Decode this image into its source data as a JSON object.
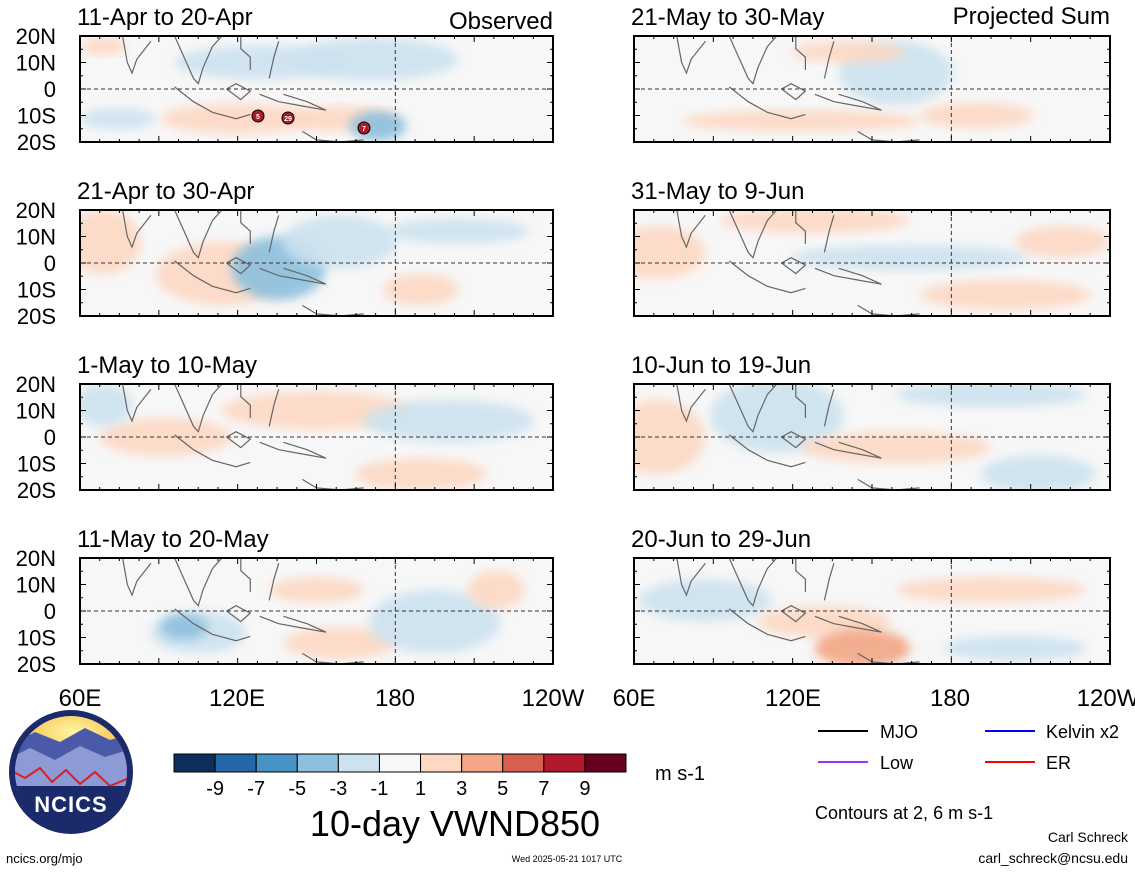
{
  "figure": {
    "title": "10-day VWND850",
    "units": "m s-1",
    "contour_note": "Contours at 2, 6 m s-1",
    "author": "Carl Schreck",
    "email": "carl_schreck@ncsu.edu",
    "source_url": "ncics.org/mjo",
    "timestamp": "Wed 2025-05-21 1017 UTC",
    "logo_text": "NCICS"
  },
  "columns": {
    "left_label": "Observed",
    "right_label": "Projected Sum"
  },
  "latitude_labels": [
    "20N",
    "10N",
    "0",
    "10S",
    "20S"
  ],
  "longitude_labels": [
    "60E",
    "120E",
    "180",
    "120W"
  ],
  "panels": [
    {
      "period": "11-Apr to 20-Apr",
      "column": "observed"
    },
    {
      "period": "21-Apr to 30-Apr",
      "column": "observed"
    },
    {
      "period": "1-May to 10-May",
      "column": "observed"
    },
    {
      "period": "11-May to 20-May",
      "column": "observed"
    },
    {
      "period": "21-May to 30-May",
      "column": "projected"
    },
    {
      "period": "31-May to 9-Jun",
      "column": "projected"
    },
    {
      "period": "10-Jun to 19-Jun",
      "column": "projected"
    },
    {
      "period": "20-Jun to 29-Jun",
      "column": "projected"
    }
  ],
  "colorbar": {
    "tick_labels": [
      "-9",
      "-7",
      "-5",
      "-3",
      "-1",
      "1",
      "3",
      "5",
      "7",
      "9"
    ],
    "colors": [
      "#0c2f5c",
      "#2566a8",
      "#4793c6",
      "#8cc0de",
      "#cce2ef",
      "#f7f7f7",
      "#fdd8c3",
      "#f3a584",
      "#d6604d",
      "#b2182b",
      "#67001f"
    ]
  },
  "legend": [
    {
      "label": "MJO",
      "color": "#000000"
    },
    {
      "label": "Kelvin x2",
      "color": "#0000ff"
    },
    {
      "label": "Low",
      "color": "#9933ff"
    },
    {
      "label": "ER",
      "color": "#ff0000"
    }
  ],
  "storm_markers": [
    "5",
    "29",
    "7"
  ]
}
